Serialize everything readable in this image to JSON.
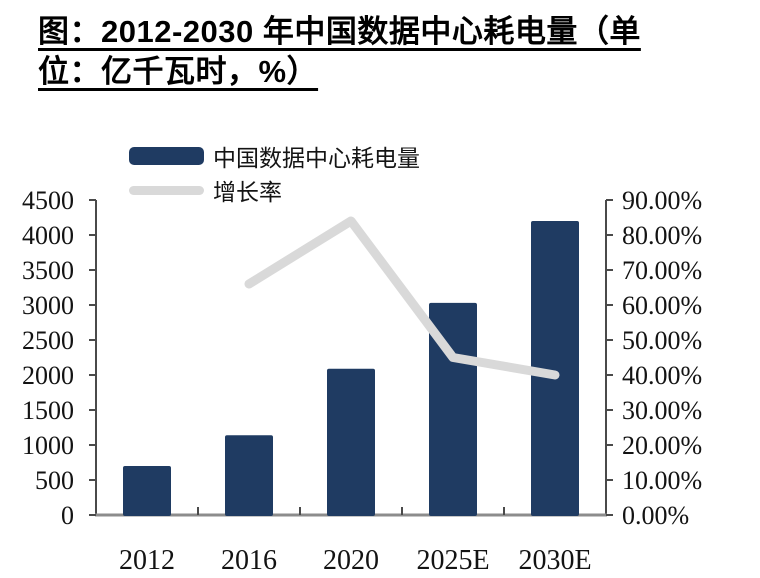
{
  "colors": {
    "bar": "#1f3b62",
    "line": "#d9d9d9",
    "axis": "#4a4a4a",
    "bottom_axis": "#8c8c8c",
    "text": "#131313"
  },
  "title": {
    "line1": "图：2012-2030 年中国数据中心耗电量（单",
    "line2": "位：亿千瓦时，%）"
  },
  "legend": {
    "items": [
      {
        "label": "中国数据中心耗电量",
        "marker": "bar-swatch",
        "color": "#1f3b62"
      },
      {
        "label": "增长率",
        "marker": "line-swatch",
        "color": "#d9d9d9"
      }
    ]
  },
  "chart_data": {
    "type": "bar",
    "subtype": "bar+line combo with dual y-axes",
    "title": "图：2012-2030 年中国数据中心耗电量（单位：亿千瓦时，%）",
    "categories": [
      "2012",
      "2016",
      "2020",
      "2025E",
      "2030E"
    ],
    "series": [
      {
        "name": "中国数据中心耗电量",
        "type": "bar",
        "axis": "left",
        "unit": "亿千瓦时",
        "values": [
          700,
          1140,
          2090,
          3030,
          4200
        ]
      },
      {
        "name": "增长率",
        "type": "line",
        "axis": "right",
        "unit": "%",
        "values": [
          null,
          66,
          84,
          45,
          40
        ]
      }
    ],
    "left_axis": {
      "min": 0,
      "max": 4500,
      "step": 500,
      "labels": [
        "4500",
        "4000",
        "3500",
        "3000",
        "2500",
        "2000",
        "1500",
        "1000",
        "500",
        "0"
      ]
    },
    "right_axis": {
      "min": 0,
      "max": 90,
      "step": 10,
      "labels": [
        "90.00%",
        "80.00%",
        "70.00%",
        "60.00%",
        "50.00%",
        "40.00%",
        "30.00%",
        "20.00%",
        "10.00%",
        "0.00%"
      ]
    },
    "grid": false,
    "legend_position": "top-left"
  }
}
